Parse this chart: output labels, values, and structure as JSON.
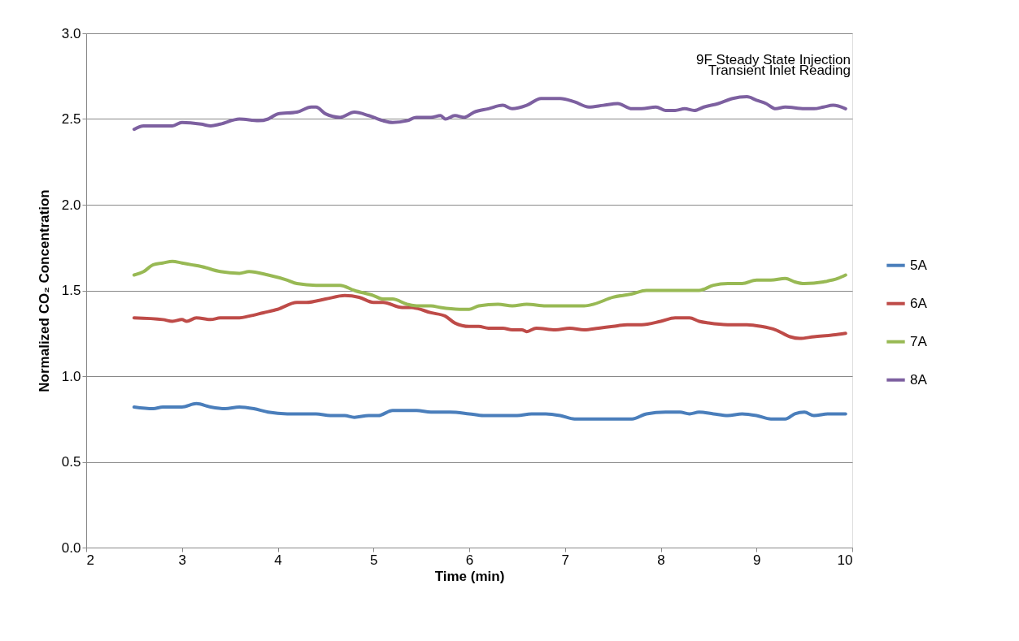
{
  "chart_data": {
    "type": "line",
    "xlabel": "Time (min)",
    "ylabel": "Normalized CO₂ Concentration",
    "annotations": [
      "9F Steady State Injection",
      "Transient Inlet Reading"
    ],
    "xlim": [
      2,
      10
    ],
    "xticks": [
      2,
      3,
      4,
      5,
      6,
      7,
      8,
      9,
      10
    ],
    "ylim": [
      0,
      3
    ],
    "yticks": [
      {
        "value": 0,
        "label": "0.0"
      },
      {
        "value": 0.5,
        "label": "0.5"
      },
      {
        "value": 1,
        "label": "1.0"
      },
      {
        "value": 1.5,
        "label": "1.5"
      },
      {
        "value": 2,
        "label": "2.0"
      },
      {
        "value": 2.5,
        "label": "2.5"
      },
      {
        "value": 3,
        "label": "3.0"
      }
    ],
    "grid": "y",
    "legend": "right",
    "marker": "none",
    "line_style": "solid",
    "series": [
      {
        "name": "5A",
        "color": "#4a7ebb",
        "x": [
          2.5,
          2.7,
          2.8,
          3.0,
          3.15,
          3.3,
          3.45,
          3.6,
          3.75,
          3.9,
          4.1,
          4.3,
          4.4,
          4.55,
          4.7,
          4.8,
          4.95,
          5.05,
          5.2,
          5.35,
          5.45,
          5.6,
          5.8,
          6.0,
          6.15,
          6.3,
          6.5,
          6.65,
          6.8,
          6.95,
          7.1,
          7.3,
          7.5,
          7.7,
          7.85,
          8.05,
          8.2,
          8.3,
          8.4,
          8.55,
          8.7,
          8.85,
          9.0,
          9.15,
          9.3,
          9.4,
          9.5,
          9.6,
          9.75,
          9.93
        ],
        "values": [
          0.82,
          0.81,
          0.82,
          0.82,
          0.84,
          0.82,
          0.81,
          0.82,
          0.81,
          0.79,
          0.78,
          0.78,
          0.78,
          0.77,
          0.77,
          0.76,
          0.77,
          0.77,
          0.8,
          0.8,
          0.8,
          0.79,
          0.79,
          0.78,
          0.77,
          0.77,
          0.77,
          0.78,
          0.78,
          0.77,
          0.75,
          0.75,
          0.75,
          0.75,
          0.78,
          0.79,
          0.79,
          0.78,
          0.79,
          0.78,
          0.77,
          0.78,
          0.77,
          0.75,
          0.75,
          0.78,
          0.79,
          0.77,
          0.78,
          0.78
        ]
      },
      {
        "name": "6A",
        "color": "#be4b48",
        "x": [
          2.5,
          2.8,
          2.9,
          3.0,
          3.05,
          3.15,
          3.3,
          3.4,
          3.6,
          3.7,
          3.85,
          4.0,
          4.2,
          4.3,
          4.5,
          4.7,
          4.85,
          5.0,
          5.1,
          5.3,
          5.4,
          5.6,
          5.75,
          5.85,
          6.0,
          6.1,
          6.2,
          6.35,
          6.45,
          6.55,
          6.6,
          6.7,
          6.9,
          7.05,
          7.2,
          7.35,
          7.5,
          7.65,
          7.8,
          8.0,
          8.15,
          8.3,
          8.4,
          8.5,
          8.7,
          8.9,
          9.05,
          9.2,
          9.35,
          9.45,
          9.6,
          9.8,
          9.93
        ],
        "values": [
          1.34,
          1.33,
          1.32,
          1.33,
          1.32,
          1.34,
          1.33,
          1.34,
          1.34,
          1.35,
          1.37,
          1.39,
          1.43,
          1.43,
          1.45,
          1.47,
          1.46,
          1.43,
          1.43,
          1.4,
          1.4,
          1.37,
          1.35,
          1.31,
          1.29,
          1.29,
          1.28,
          1.28,
          1.27,
          1.27,
          1.26,
          1.28,
          1.27,
          1.28,
          1.27,
          1.28,
          1.29,
          1.3,
          1.3,
          1.32,
          1.34,
          1.34,
          1.32,
          1.31,
          1.3,
          1.3,
          1.29,
          1.27,
          1.23,
          1.22,
          1.23,
          1.24,
          1.25
        ]
      },
      {
        "name": "7A",
        "color": "#98b954",
        "x": [
          2.5,
          2.6,
          2.7,
          2.8,
          2.9,
          3.0,
          3.1,
          3.2,
          3.4,
          3.6,
          3.7,
          3.9,
          4.1,
          4.2,
          4.4,
          4.55,
          4.65,
          4.8,
          5.0,
          5.1,
          5.2,
          5.35,
          5.45,
          5.6,
          5.7,
          5.9,
          6.0,
          6.1,
          6.3,
          6.45,
          6.6,
          6.8,
          7.0,
          7.2,
          7.3,
          7.5,
          7.7,
          7.85,
          8.0,
          8.15,
          8.3,
          8.4,
          8.55,
          8.7,
          8.85,
          9.0,
          9.15,
          9.3,
          9.4,
          9.5,
          9.7,
          9.85,
          9.93
        ],
        "values": [
          1.59,
          1.61,
          1.65,
          1.66,
          1.67,
          1.66,
          1.65,
          1.64,
          1.61,
          1.6,
          1.61,
          1.59,
          1.56,
          1.54,
          1.53,
          1.53,
          1.53,
          1.5,
          1.47,
          1.45,
          1.45,
          1.42,
          1.41,
          1.41,
          1.4,
          1.39,
          1.39,
          1.41,
          1.42,
          1.41,
          1.42,
          1.41,
          1.41,
          1.41,
          1.42,
          1.46,
          1.48,
          1.5,
          1.5,
          1.5,
          1.5,
          1.5,
          1.53,
          1.54,
          1.54,
          1.56,
          1.56,
          1.57,
          1.55,
          1.54,
          1.55,
          1.57,
          1.59
        ]
      },
      {
        "name": "8A",
        "color": "#7d60a0",
        "x": [
          2.5,
          2.6,
          2.75,
          2.9,
          3.0,
          3.2,
          3.3,
          3.4,
          3.6,
          3.8,
          3.9,
          4.0,
          4.2,
          4.35,
          4.4,
          4.5,
          4.65,
          4.8,
          4.95,
          5.1,
          5.2,
          5.35,
          5.45,
          5.6,
          5.7,
          5.75,
          5.85,
          5.95,
          6.05,
          6.2,
          6.35,
          6.45,
          6.6,
          6.75,
          6.95,
          7.1,
          7.25,
          7.4,
          7.55,
          7.7,
          7.8,
          7.95,
          8.05,
          8.15,
          8.25,
          8.35,
          8.45,
          8.6,
          8.75,
          8.9,
          9.0,
          9.1,
          9.2,
          9.3,
          9.5,
          9.6,
          9.7,
          9.8,
          9.93
        ],
        "values": [
          2.44,
          2.46,
          2.46,
          2.46,
          2.48,
          2.47,
          2.46,
          2.47,
          2.5,
          2.49,
          2.5,
          2.53,
          2.54,
          2.57,
          2.57,
          2.53,
          2.51,
          2.54,
          2.52,
          2.49,
          2.48,
          2.49,
          2.51,
          2.51,
          2.52,
          2.5,
          2.52,
          2.51,
          2.54,
          2.56,
          2.58,
          2.56,
          2.58,
          2.62,
          2.62,
          2.6,
          2.57,
          2.58,
          2.59,
          2.56,
          2.56,
          2.57,
          2.55,
          2.55,
          2.56,
          2.55,
          2.57,
          2.59,
          2.62,
          2.63,
          2.61,
          2.59,
          2.56,
          2.57,
          2.56,
          2.56,
          2.57,
          2.58,
          2.56
        ]
      }
    ]
  }
}
